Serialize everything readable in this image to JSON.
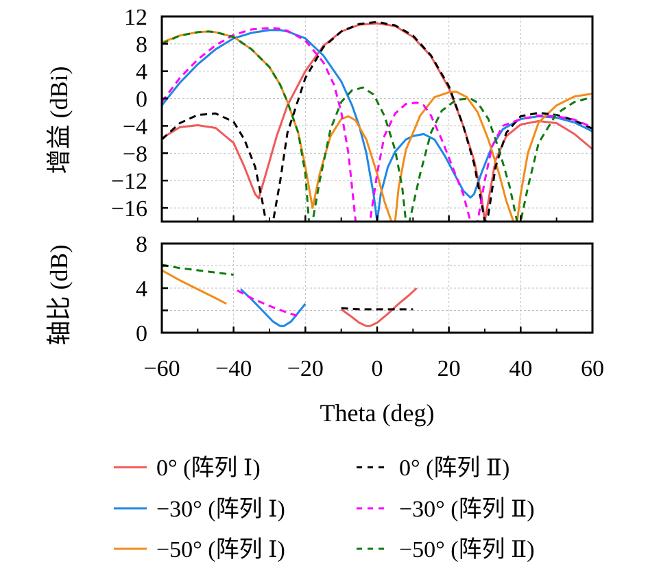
{
  "chart_data": [
    {
      "type": "line",
      "panel": "top",
      "ylabel": "增益 (dBi)",
      "xlabel": "",
      "xlim": [
        -60,
        60
      ],
      "ylim": [
        -18,
        12
      ],
      "yticks": [
        12,
        8,
        4,
        0,
        -4,
        -8,
        -12,
        -16
      ],
      "ytick_labels": [
        "12",
        "8",
        "4",
        "0",
        "−4",
        "−8",
        "−12",
        "−16"
      ],
      "xticks": [
        -60,
        -40,
        -20,
        0,
        20,
        40,
        60
      ],
      "grid": true,
      "series": [
        {
          "name": "0° (阵列 Ⅰ)",
          "color": "#ef5a5a",
          "dash": "solid",
          "x": [
            -60,
            -55,
            -50,
            -45,
            -40,
            -37,
            -34,
            -33,
            -31,
            -28,
            -25,
            -20,
            -15,
            -10,
            -5,
            0,
            5,
            10,
            15,
            20,
            24,
            27,
            29,
            30,
            31,
            33,
            36,
            40,
            45,
            50,
            55,
            60
          ],
          "y": [
            -5.8,
            -4.2,
            -3.9,
            -4.3,
            -6.5,
            -10,
            -14,
            -14.6,
            -11,
            -5.5,
            -1,
            4,
            7.7,
            9.8,
            10.8,
            11,
            10.6,
            9,
            6.2,
            1.5,
            -4,
            -9,
            -14,
            -18,
            -15,
            -9,
            -5.5,
            -3.8,
            -3.3,
            -3.6,
            -5.2,
            -7.4
          ]
        },
        {
          "name": "−30° (阵列 Ⅰ)",
          "color": "#1e88e5",
          "dash": "solid",
          "x": [
            -60,
            -55,
            -50,
            -45,
            -40,
            -35,
            -30,
            -27,
            -25,
            -20,
            -15,
            -10,
            -7,
            -5,
            -3,
            -2,
            -1,
            0,
            1,
            3,
            5,
            8,
            10,
            13,
            16,
            19,
            22,
            24,
            26,
            27,
            29,
            32,
            35,
            40,
            45,
            50,
            55,
            60
          ],
          "y": [
            -1,
            2.3,
            5,
            7.2,
            8.8,
            9.6,
            10,
            10,
            9.8,
            8.8,
            6.3,
            2.5,
            -1,
            -4,
            -8,
            -11,
            -14,
            -18,
            -14,
            -10,
            -7.8,
            -6,
            -5.5,
            -5.2,
            -6,
            -8.5,
            -11.5,
            -13.5,
            -14.5,
            -14,
            -11,
            -7,
            -4.5,
            -3,
            -2.6,
            -2.8,
            -3.5,
            -4.8
          ]
        },
        {
          "name": "−50° (阵列 Ⅰ)",
          "color": "#f28c1c",
          "dash": "solid",
          "x": [
            -60,
            -55,
            -50,
            -47,
            -45,
            -40,
            -35,
            -30,
            -27,
            -25,
            -22,
            -20,
            -19,
            -18,
            -16,
            -13,
            -10,
            -8,
            -6,
            -3,
            0,
            2,
            4,
            5,
            6,
            8,
            12,
            16,
            20,
            22,
            25,
            28,
            31,
            34,
            36,
            38,
            39,
            40,
            42,
            45,
            50,
            55,
            60
          ],
          "y": [
            8.2,
            9.2,
            9.7,
            9.8,
            9.7,
            9,
            7.2,
            4.6,
            2,
            -0.5,
            -5,
            -10,
            -13,
            -16,
            -11,
            -5.5,
            -3,
            -2.6,
            -3.2,
            -6,
            -11,
            -15,
            -18,
            -18,
            -13,
            -7.5,
            -2.5,
            0.2,
            0.9,
            1,
            0.2,
            -2,
            -6,
            -11,
            -15,
            -18,
            -18,
            -14,
            -8,
            -3.5,
            -1,
            0.3,
            0.7
          ]
        },
        {
          "name": "0° (阵列 Ⅱ)",
          "color": "#000000",
          "dash": "dashed",
          "x": [
            -60,
            -55,
            -50,
            -45,
            -40,
            -37,
            -34,
            -32,
            -31,
            -29,
            -27,
            -25,
            -20,
            -15,
            -10,
            -5,
            0,
            5,
            10,
            15,
            20,
            24,
            27,
            29,
            30,
            31,
            33,
            36,
            40,
            45,
            50,
            55,
            60
          ],
          "y": [
            -6,
            -3.6,
            -2.4,
            -2.2,
            -3.4,
            -6,
            -10,
            -15,
            -18,
            -18,
            -12,
            -5,
            3,
            7.5,
            9.8,
            10.9,
            11.2,
            10.7,
            9.2,
            6.3,
            1.8,
            -4,
            -9.5,
            -15,
            -18,
            -17,
            -10,
            -5,
            -2.6,
            -2.1,
            -2.4,
            -3.2,
            -4.4
          ]
        },
        {
          "name": "−30° (阵列 Ⅱ)",
          "color": "#ff00ff",
          "dash": "dashed",
          "x": [
            -60,
            -55,
            -50,
            -45,
            -40,
            -35,
            -30,
            -27,
            -25,
            -20,
            -15,
            -12,
            -10,
            -8,
            -7,
            -6,
            -2,
            0,
            2,
            5,
            8,
            11,
            13,
            15,
            18,
            21,
            24,
            26,
            28,
            30,
            32,
            35,
            40,
            45,
            50,
            55,
            60
          ],
          "y": [
            -0.5,
            3,
            5.7,
            7.8,
            9.3,
            10.1,
            10.3,
            10.2,
            9.9,
            8.5,
            5.3,
            2,
            -2,
            -8,
            -13,
            -18,
            -18,
            -11,
            -5.5,
            -2.2,
            -0.8,
            -0.6,
            -1,
            -2.5,
            -6,
            -10,
            -14,
            -18,
            -18,
            -12,
            -7,
            -4,
            -3,
            -2.5,
            -2.6,
            -3.1,
            -4.2
          ]
        },
        {
          "name": "−50° (阵列 Ⅱ)",
          "color": "#0f7a0f",
          "dash": "dashed",
          "x": [
            -60,
            -55,
            -50,
            -47,
            -45,
            -40,
            -35,
            -30,
            -27,
            -25,
            -22,
            -20,
            -19,
            -18,
            -16,
            -13,
            -10,
            -7,
            -4,
            -1,
            2,
            5,
            7,
            8,
            9,
            12,
            15,
            18,
            22,
            26,
            28,
            31,
            34,
            37,
            39,
            40,
            42,
            45,
            50,
            55,
            60
          ],
          "y": [
            8,
            9.2,
            9.7,
            9.8,
            9.7,
            9,
            7.2,
            4.6,
            2,
            -0.5,
            -5,
            -11,
            -18,
            -18,
            -12,
            -4.5,
            -0.5,
            1.2,
            1.6,
            0.6,
            -2.5,
            -7.5,
            -13,
            -18,
            -18,
            -11,
            -5,
            -1.8,
            -0.2,
            0,
            -0.6,
            -3,
            -7.5,
            -13,
            -18,
            -18,
            -13,
            -6.5,
            -2.2,
            -0.5,
            0.2
          ]
        }
      ]
    },
    {
      "type": "line",
      "panel": "bottom",
      "ylabel": "轴比 (dB)",
      "xlabel": "Theta (deg)",
      "xlim": [
        -60,
        60
      ],
      "ylim": [
        0,
        8
      ],
      "yticks": [
        8,
        4,
        0
      ],
      "ytick_labels": [
        "8",
        "4",
        "0"
      ],
      "minor_yticks": [
        6,
        2
      ],
      "xticks": [
        -60,
        -40,
        -20,
        0,
        20,
        40,
        60
      ],
      "xtick_labels": [
        "−60",
        "−40",
        "−20",
        "0",
        "20",
        "40",
        "60"
      ],
      "grid": true,
      "series": [
        {
          "name": "0° (阵列 Ⅰ)",
          "color": "#ef5a5a",
          "dash": "solid",
          "x": [
            -10,
            -7,
            -5,
            -3,
            -2,
            0,
            3,
            6,
            9,
            11
          ],
          "y": [
            2.1,
            1.4,
            0.9,
            0.6,
            0.6,
            0.9,
            1.7,
            2.6,
            3.4,
            4.0
          ]
        },
        {
          "name": "−30° (阵列 Ⅰ)",
          "color": "#1e88e5",
          "dash": "solid",
          "x": [
            -38,
            -35,
            -32,
            -29,
            -27,
            -26,
            -24,
            -22,
            -20
          ],
          "y": [
            3.9,
            3.0,
            2.0,
            1.0,
            0.6,
            0.6,
            1.0,
            1.8,
            2.6
          ]
        },
        {
          "name": "−50° (阵列 Ⅰ)",
          "color": "#f28c1c",
          "dash": "solid",
          "x": [
            -60,
            -55,
            -50,
            -45,
            -42
          ],
          "y": [
            5.6,
            4.7,
            3.9,
            3.1,
            2.6
          ]
        },
        {
          "name": "0° (阵列 Ⅱ)",
          "color": "#000000",
          "dash": "dashed",
          "x": [
            -10,
            -5,
            0,
            5,
            10
          ],
          "y": [
            2.2,
            2.1,
            2.1,
            2.1,
            2.1
          ]
        },
        {
          "name": "−30° (阵列 Ⅱ)",
          "color": "#ff00ff",
          "dash": "dashed",
          "x": [
            -39,
            -35,
            -30,
            -25,
            -21
          ],
          "y": [
            3.8,
            3.1,
            2.4,
            1.8,
            1.4
          ]
        },
        {
          "name": "−50° (阵列 Ⅱ)",
          "color": "#0f7a0f",
          "dash": "dashed",
          "x": [
            -60,
            -55,
            -50,
            -45,
            -40
          ],
          "y": [
            6.1,
            5.8,
            5.6,
            5.4,
            5.2
          ]
        }
      ]
    }
  ],
  "legend": {
    "placement": "bottom",
    "items": [
      {
        "label": "0° (阵列 Ⅰ)",
        "color": "#ef5a5a",
        "dash": "solid"
      },
      {
        "label": "0° (阵列 Ⅱ)",
        "color": "#000000",
        "dash": "dashed"
      },
      {
        "label": "−30° (阵列 Ⅰ)",
        "color": "#1e88e5",
        "dash": "solid"
      },
      {
        "label": "−30° (阵列 Ⅱ)",
        "color": "#ff00ff",
        "dash": "dashed"
      },
      {
        "label": "−50° (阵列 Ⅰ)",
        "color": "#f28c1c",
        "dash": "solid"
      },
      {
        "label": "−50° (阵列 Ⅱ)",
        "color": "#0f7a0f",
        "dash": "dashed"
      }
    ]
  }
}
